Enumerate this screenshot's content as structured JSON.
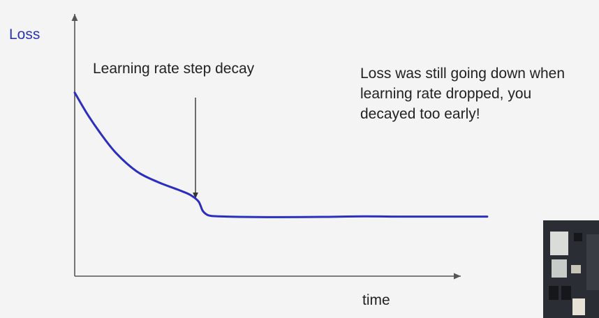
{
  "chart_data": {
    "type": "line",
    "xlabel": "time",
    "ylabel": "Loss",
    "series": [
      {
        "color": "#2b2fc0",
        "x": [
          0,
          0.03,
          0.06,
          0.1,
          0.15,
          0.2,
          0.25,
          0.28,
          0.3,
          0.31,
          0.32,
          0.33,
          0.35,
          0.4,
          0.5,
          0.6,
          0.7,
          0.8,
          0.9,
          1.0
        ],
        "y": [
          0.7,
          0.62,
          0.55,
          0.47,
          0.4,
          0.36,
          0.33,
          0.31,
          0.285,
          0.25,
          0.235,
          0.23,
          0.228,
          0.226,
          0.225,
          0.226,
          0.228,
          0.227,
          0.227,
          0.227
        ]
      }
    ],
    "xlim": [
      0,
      1.1
    ],
    "ylim": [
      0,
      1
    ],
    "annotations": [
      {
        "text": "Learning rate step decay",
        "x": 0.31,
        "arrow": true
      }
    ],
    "axis_ticks": false,
    "grid": false
  },
  "annotations": {
    "decay_label": "Learning rate step decay",
    "note_lines": [
      "Loss was still going down when",
      "learning rate dropped, you",
      "decayed too early!"
    ]
  },
  "colors": {
    "loss_curve": "#2b2fc0",
    "ylabel": "#2a34b8",
    "axis": "#555555"
  }
}
